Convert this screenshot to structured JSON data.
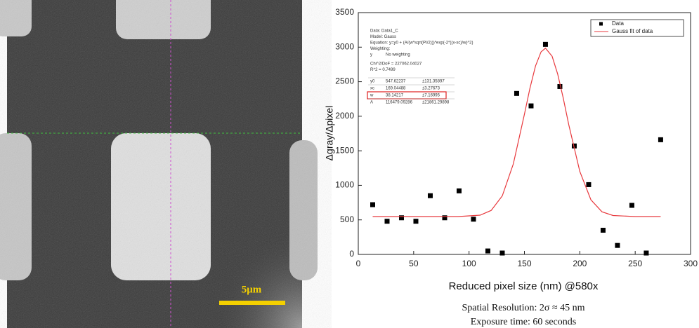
{
  "image": {
    "scale_bar": "5μm"
  },
  "chart_data": {
    "type": "scatter",
    "x_label": "Reduced pixel size (nm) @580x",
    "y_label": "Δgray/Δpixel",
    "xlim": [
      0,
      300
    ],
    "xticks": [
      0,
      50,
      100,
      150,
      200,
      250,
      300
    ],
    "ylim": [
      0,
      3500
    ],
    "yticks": [
      0,
      500,
      1000,
      1500,
      2000,
      2500,
      3000,
      3500
    ],
    "legend": "upper right",
    "series": [
      {
        "name": "Data",
        "type": "scatter",
        "color": "#000000",
        "x": [
          13,
          26,
          39,
          52,
          65,
          78,
          91,
          104,
          117,
          130,
          143,
          156,
          169,
          182,
          195,
          208,
          221,
          234,
          247,
          260,
          273
        ],
        "values": [
          720,
          480,
          530,
          480,
          850,
          530,
          920,
          510,
          50,
          20,
          2330,
          2150,
          3040,
          2430,
          1570,
          1010,
          350,
          130,
          710,
          20,
          1660
        ]
      },
      {
        "name": "Gauss fit of data",
        "type": "line",
        "color": "#e8393d",
        "x": [
          13,
          50,
          90,
          110,
          120,
          130,
          140,
          150,
          155,
          160,
          165,
          169,
          175,
          180,
          185,
          190,
          200,
          210,
          220,
          230,
          250,
          273
        ],
        "values": [
          548,
          548,
          548,
          568,
          637,
          847,
          1311,
          2029,
          2407,
          2727,
          2931,
          2985,
          2868,
          2612,
          2266,
          1879,
          1201,
          791,
          617,
          563,
          548,
          548
        ]
      }
    ],
    "annotation": {
      "lines": [
        "Data: Data1_C",
        "Model: Gauss",
        "Equation: y=y0 + (A/(w*sqrt(PI/2)))*exp(-2*((x-xc)/w)^2)",
        "Weighting:"
      ],
      "weighting": [
        "y",
        "No weighting"
      ],
      "stats": [
        "Chi^2/DoF = 227062.04027",
        "R^2 = 0.7499"
      ],
      "params": [
        [
          "y0",
          "547.62237",
          "±131.35897"
        ],
        [
          "xc",
          "169.04488",
          "±3.27673"
        ],
        [
          "w",
          "38.14217",
          "±7.16995"
        ],
        [
          "A",
          "116479.09286",
          "±21861.29898"
        ]
      ]
    }
  },
  "caption": [
    "Spatial Resolution: 2σ ≈ 45 nm",
    "Exposure time: 60 seconds"
  ]
}
